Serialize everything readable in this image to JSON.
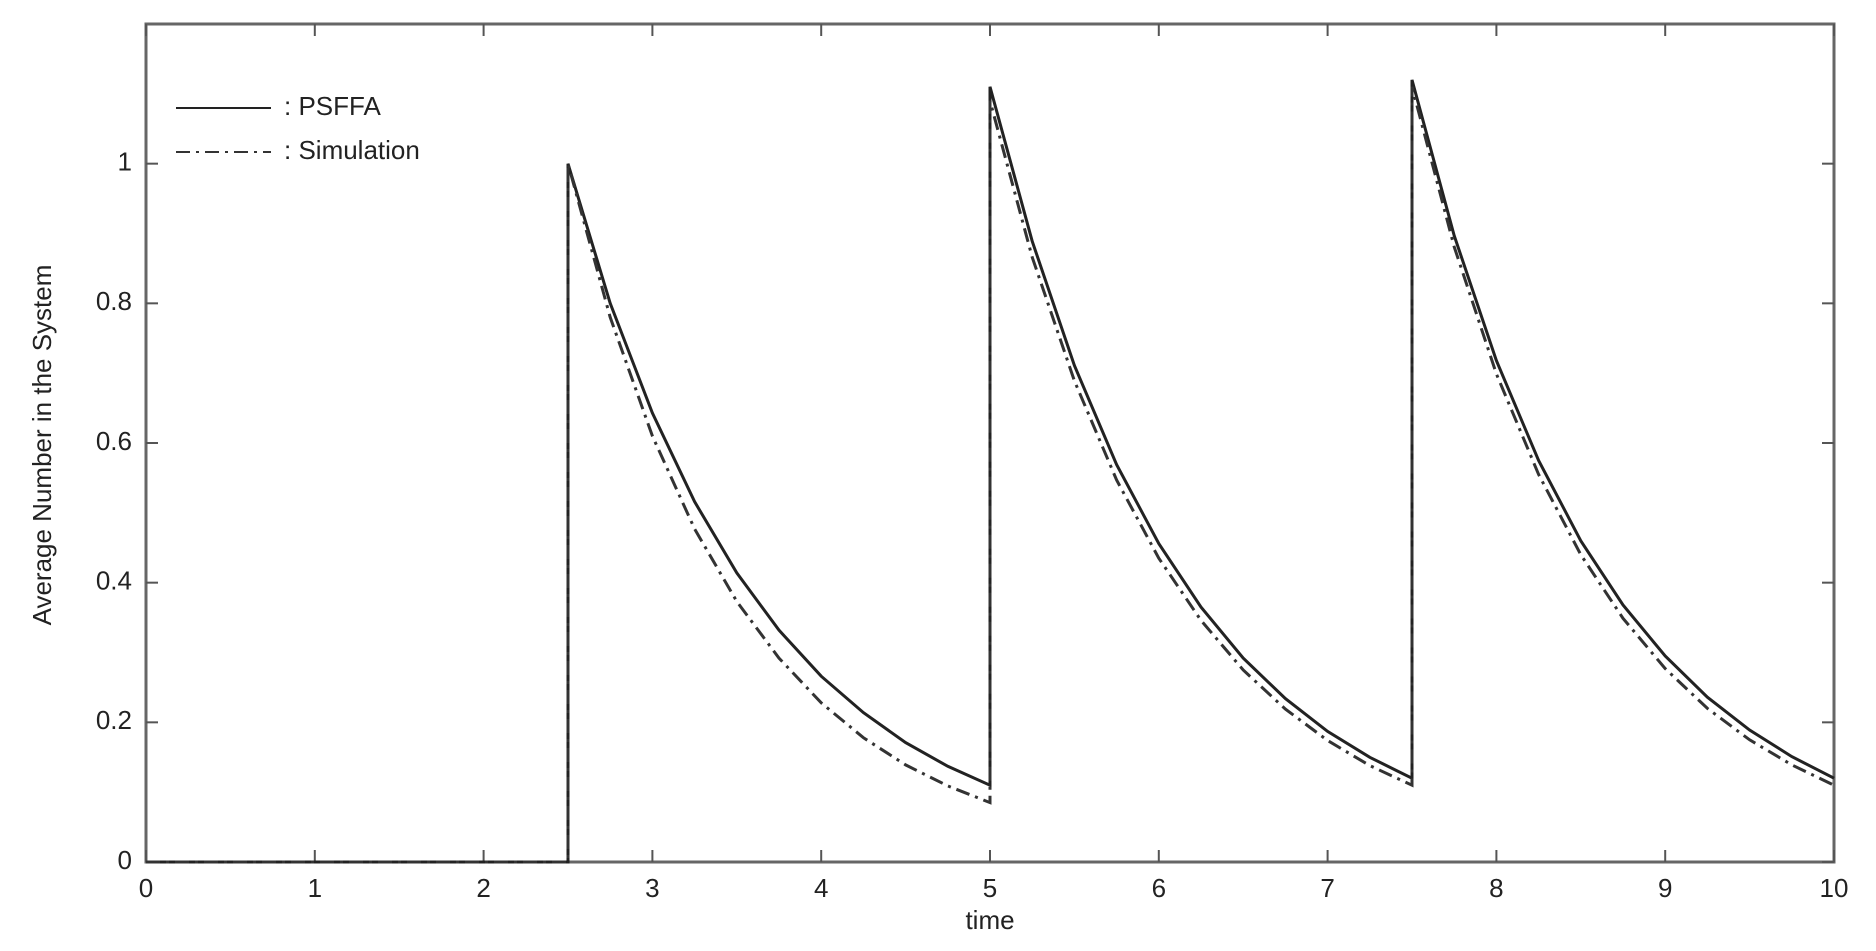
{
  "chart_data": {
    "type": "line",
    "x_label": "time",
    "y_label": "Average Number in the System",
    "x": [
      0,
      2.5,
      2.5,
      2.75,
      3,
      3.25,
      3.5,
      3.75,
      4,
      4.25,
      4.5,
      4.75,
      5,
      5,
      5.25,
      5.5,
      5.75,
      6,
      6.25,
      6.5,
      6.75,
      7,
      7.25,
      7.5,
      7.5,
      7.75,
      8,
      8.25,
      8.5,
      8.75,
      9,
      9.25,
      9.5,
      9.75,
      10
    ],
    "series": [
      {
        "name": ": PSFFA",
        "color": "#222222",
        "dash": "solid",
        "values": [
          0,
          0,
          1,
          0.8,
          0.643,
          0.516,
          0.414,
          0.332,
          0.266,
          0.214,
          0.171,
          0.137,
          0.11,
          1.11,
          0.889,
          0.711,
          0.569,
          0.456,
          0.365,
          0.292,
          0.234,
          0.187,
          0.15,
          0.12,
          1.12,
          0.897,
          0.718,
          0.575,
          0.46,
          0.368,
          0.295,
          0.236,
          0.189,
          0.151,
          0.12
        ]
      },
      {
        "name": ": Simulation",
        "color": "#333333",
        "dash": "dashdot",
        "values": [
          0,
          0,
          1,
          0.78,
          0.61,
          0.477,
          0.373,
          0.292,
          0.228,
          0.178,
          0.139,
          0.109,
          0.085,
          1.09,
          0.866,
          0.689,
          0.547,
          0.435,
          0.346,
          0.275,
          0.219,
          0.174,
          0.138,
          0.11,
          1.11,
          0.881,
          0.699,
          0.555,
          0.44,
          0.349,
          0.277,
          0.22,
          0.175,
          0.139,
          0.11
        ]
      }
    ],
    "xlim": [
      0,
      10
    ],
    "xticks": [
      0,
      1,
      2,
      3,
      4,
      5,
      6,
      7,
      8,
      9,
      10
    ],
    "ylim": [
      0,
      1.2
    ],
    "yticks": [
      0,
      0.2,
      0.4,
      0.6,
      0.8,
      1
    ],
    "grid": false,
    "legend": "upper left"
  }
}
